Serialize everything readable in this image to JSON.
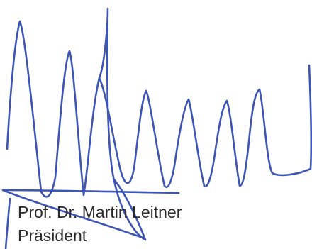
{
  "signer": {
    "name": "Prof. Dr. Martin Leitner",
    "title": "Präsident"
  },
  "signature": {
    "kind": "handwritten-signature",
    "ink_color": "#3d55b4"
  },
  "text_color": "#2a2a2a"
}
